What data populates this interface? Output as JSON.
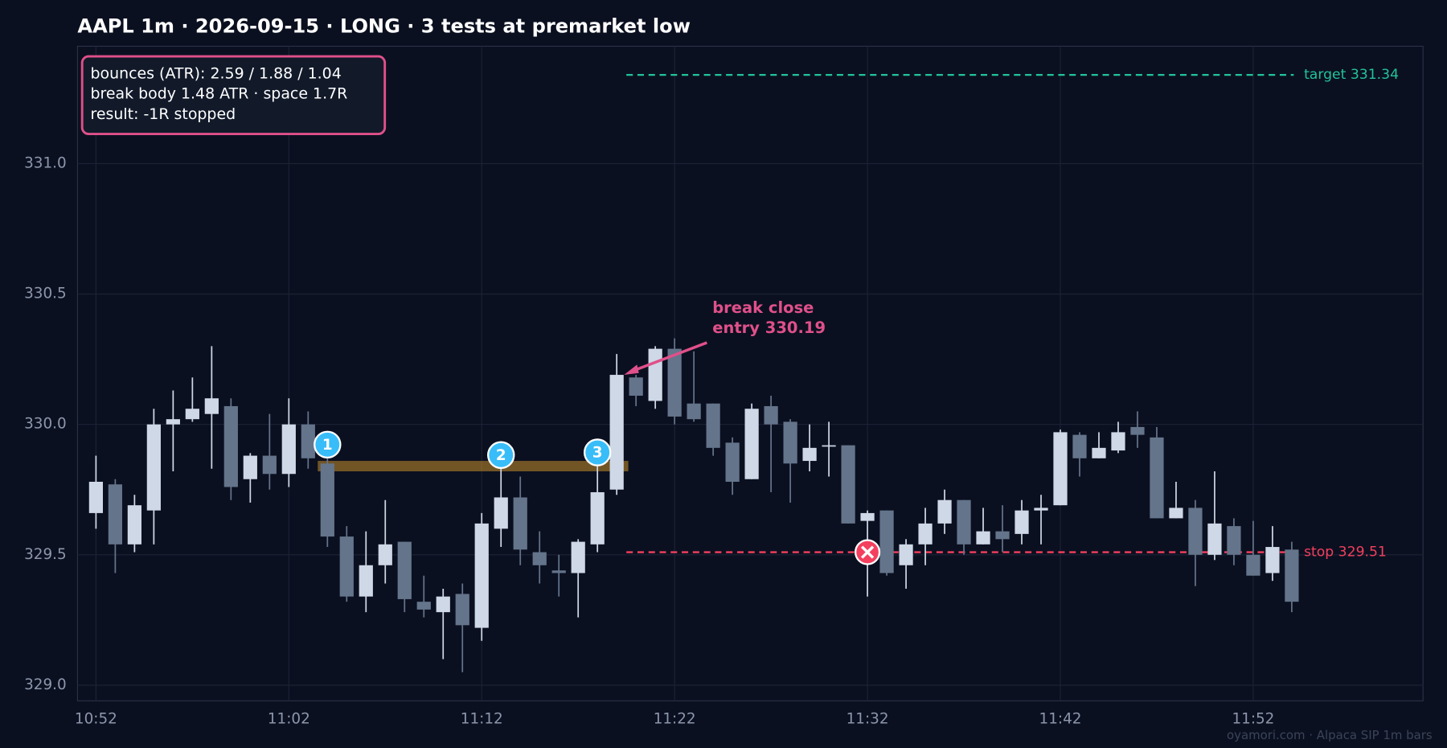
{
  "chart_data": {
    "type": "candlestick",
    "title": "AAPL 1m · 2026-09-15 · LONG · 3 tests at premarket low",
    "categories": [
      "10:52",
      null,
      null,
      null,
      null,
      null,
      null,
      null,
      null,
      null,
      "11:02",
      null,
      null,
      null,
      null,
      null,
      null,
      null,
      null,
      null,
      "11:12",
      null,
      null,
      null,
      null,
      null,
      null,
      null,
      null,
      null,
      "11:22",
      null,
      null,
      null,
      null,
      null,
      null,
      null,
      null,
      null,
      "11:32",
      null,
      null,
      null,
      null,
      null,
      null,
      null,
      null,
      null,
      "11:42",
      null,
      null,
      null,
      null,
      null,
      null,
      null,
      null,
      null,
      "11:52",
      null,
      null
    ],
    "open": [
      329.66,
      329.77,
      329.54,
      329.67,
      330.0,
      330.02,
      330.04,
      330.07,
      329.79,
      329.88,
      329.81,
      330.0,
      329.85,
      329.57,
      329.34,
      329.46,
      329.55,
      329.32,
      329.28,
      329.35,
      329.22,
      329.6,
      329.72,
      329.51,
      329.44,
      329.43,
      329.54,
      329.75,
      330.18,
      330.09,
      330.29,
      330.08,
      330.08,
      329.93,
      329.79,
      330.07,
      330.01,
      329.86,
      329.92,
      329.92,
      329.63,
      329.67,
      329.46,
      329.54,
      329.62,
      329.71,
      329.54,
      329.59,
      329.58,
      329.67,
      329.69,
      329.96,
      329.87,
      329.9,
      329.99,
      329.95,
      329.64,
      329.68,
      329.5,
      329.61,
      329.5,
      329.43,
      329.52
    ],
    "high": [
      329.88,
      329.79,
      329.73,
      330.06,
      330.13,
      330.18,
      330.3,
      330.1,
      329.89,
      330.04,
      330.1,
      330.05,
      329.88,
      329.61,
      329.59,
      329.71,
      329.55,
      329.42,
      329.37,
      329.39,
      329.66,
      329.84,
      329.8,
      329.59,
      329.5,
      329.56,
      329.85,
      330.27,
      330.19,
      330.3,
      330.33,
      330.28,
      330.08,
      329.95,
      330.08,
      330.11,
      330.02,
      330.0,
      330.01,
      329.92,
      329.67,
      329.67,
      329.56,
      329.68,
      329.75,
      329.71,
      329.68,
      329.69,
      329.71,
      329.73,
      329.98,
      329.97,
      329.97,
      330.01,
      330.05,
      329.99,
      329.78,
      329.71,
      329.82,
      329.64,
      329.63,
      329.61,
      329.55
    ],
    "low": [
      329.6,
      329.43,
      329.51,
      329.54,
      329.82,
      330.01,
      329.83,
      329.71,
      329.7,
      329.75,
      329.76,
      329.83,
      329.53,
      329.32,
      329.28,
      329.39,
      329.28,
      329.26,
      329.1,
      329.05,
      329.17,
      329.53,
      329.46,
      329.39,
      329.34,
      329.26,
      329.51,
      329.73,
      330.07,
      330.06,
      330.0,
      330.01,
      329.88,
      329.73,
      329.79,
      329.74,
      329.7,
      329.82,
      329.8,
      329.62,
      329.34,
      329.42,
      329.37,
      329.46,
      329.58,
      329.5,
      329.54,
      329.51,
      329.54,
      329.54,
      329.69,
      329.8,
      329.87,
      329.89,
      329.91,
      329.64,
      329.64,
      329.38,
      329.48,
      329.46,
      329.42,
      329.4,
      329.28
    ],
    "close": [
      329.78,
      329.54,
      329.69,
      330.0,
      330.02,
      330.06,
      330.1,
      329.76,
      329.88,
      329.81,
      330.0,
      329.87,
      329.57,
      329.34,
      329.46,
      329.54,
      329.33,
      329.29,
      329.34,
      329.23,
      329.62,
      329.72,
      329.52,
      329.46,
      329.43,
      329.55,
      329.74,
      330.19,
      330.11,
      330.29,
      330.03,
      330.02,
      329.91,
      329.78,
      330.06,
      330.0,
      329.85,
      329.91,
      329.92,
      329.62,
      329.66,
      329.43,
      329.54,
      329.62,
      329.71,
      329.54,
      329.59,
      329.56,
      329.67,
      329.68,
      329.97,
      329.87,
      329.91,
      329.97,
      329.96,
      329.64,
      329.68,
      329.5,
      329.62,
      329.5,
      329.42,
      329.53,
      329.32
    ],
    "up_color": "#cfd8e6",
    "down_color": "#64748b",
    "ylim": [
      328.94,
      331.45
    ],
    "yticks": [
      {
        "value": 329,
        "label": "329.0"
      },
      {
        "value": 329.5,
        "label": "329.5"
      },
      {
        "value": 330,
        "label": "330.0"
      },
      330.5,
      {
        "value": 331,
        "label": "331.0"
      }
    ],
    "grid": true,
    "zone": [
      329.82,
      329.86
    ],
    "tests": [
      "1",
      "2",
      "3"
    ],
    "target": {
      "label": "target 331.34",
      "value": 331.34,
      "color": "#22c39a"
    },
    "stop": {
      "label": "stop 329.51",
      "value": 329.51,
      "color": "#f43f5e"
    },
    "entry": {
      "label": [
        "break close",
        "entry 330.19"
      ],
      "value": 330.19,
      "color": "#e0508a"
    },
    "info": [
      "bounces (ATR): 2.59 / 1.88 / 1.04",
      "break body 1.48 ATR · space 1.7R",
      "result: -1R stopped"
    ],
    "footer": "oyamori.com · Alpaca SIP 1m bars"
  }
}
